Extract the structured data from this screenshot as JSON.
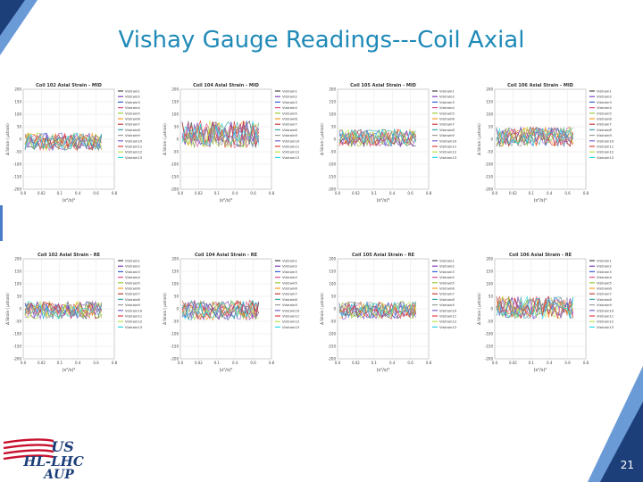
{
  "slide": {
    "title": "Vishay Gauge Readings---Coil Axial",
    "page_number": "21",
    "logo": {
      "line1": "US",
      "line2": "HL-LHC",
      "line3": "AUP"
    }
  },
  "colors": {
    "title": "#1f8ab8",
    "accent_dark": "#1c3f7a",
    "accent_light": "#6b9bd6",
    "logo_red": "#c8102e",
    "logo_blue": "#1c3f7a"
  },
  "legend_items": [
    "Vistrain1",
    "Vistrain2",
    "Vistrain3",
    "Vistrain4",
    "Vistrain5",
    "Vistrain6",
    "Vistrain7",
    "Vistrain8",
    "Vistrain9",
    "Vistrain10",
    "Vistrain11",
    "Vistrain12",
    "Vistrain13"
  ],
  "series_colors": [
    "#4a4a4a",
    "#7f3fbf",
    "#2f5fd6",
    "#d94f8a",
    "#9ccc3a",
    "#ff9a1f",
    "#c43a3a",
    "#3aa6a6",
    "#9a9a9a",
    "#7d5fd0",
    "#e04040",
    "#bde04a",
    "#29d6e8"
  ],
  "chart_data": [
    {
      "type": "line",
      "title": "Coil 102 Axial Strain - MID",
      "ylabel": "Δ Strain ( μstrain)",
      "xlabel": "(s²/s)²",
      "xticks": [
        "0.0",
        "0.02",
        "0.1",
        "0.4",
        "0.6",
        "0.8"
      ],
      "yticks": [
        "200",
        "150",
        "100",
        "50",
        "0",
        "-50",
        "-100",
        "-150",
        "-200"
      ],
      "ylim": [
        -200,
        200
      ],
      "center": -10,
      "amp": 35
    },
    {
      "type": "line",
      "title": "Coil 104 Axial Strain - MID",
      "ylabel": "Δ Strain ( μstrain)",
      "xlabel": "(s²/s)²",
      "xticks": [
        "0.0",
        "0.02",
        "0.1",
        "0.4",
        "0.6",
        "0.8"
      ],
      "yticks": [
        "200",
        "150",
        "100",
        "50",
        "0",
        "-50",
        "-100",
        "-150",
        "-200"
      ],
      "ylim": [
        -200,
        200
      ],
      "center": 20,
      "amp": 55
    },
    {
      "type": "line",
      "title": "Coil 105 Axial Strain - MID",
      "ylabel": "Δ Strain ( μstrain)",
      "xlabel": "(s²/s)²",
      "xticks": [
        "0.0",
        "0.02",
        "0.1",
        "0.4",
        "0.6",
        "0.8"
      ],
      "yticks": [
        "200",
        "150",
        "100",
        "50",
        "0",
        "-50",
        "-100",
        "-150",
        "-200"
      ],
      "ylim": [
        -200,
        200
      ],
      "center": 5,
      "amp": 35
    },
    {
      "type": "line",
      "title": "Coil 106 Axial Strain - MID",
      "ylabel": "Δ Strain ( μstrain)",
      "xlabel": "(s²/s)²",
      "xticks": [
        "0.0",
        "0.02",
        "0.1",
        "0.4",
        "0.6",
        "0.8"
      ],
      "yticks": [
        "200",
        "150",
        "100",
        "50",
        "0",
        "-50",
        "-100",
        "-150",
        "-200"
      ],
      "ylim": [
        -200,
        200
      ],
      "center": 10,
      "amp": 40
    },
    {
      "type": "line",
      "title": "Coil 102 Axial Strain - RE",
      "ylabel": "Δ Strain ( μstrain)",
      "xlabel": "(s²/s)²",
      "xticks": [
        "0.0",
        "0.02",
        "0.1",
        "0.4",
        "0.6",
        "0.8"
      ],
      "yticks": [
        "200",
        "150",
        "100",
        "50",
        "0",
        "-50",
        "-100",
        "-150",
        "-200"
      ],
      "ylim": [
        -200,
        200
      ],
      "center": -5,
      "amp": 35
    },
    {
      "type": "line",
      "title": "Coil 104 Axial Strain - RE",
      "ylabel": "Δ Strain ( μstrain)",
      "xlabel": "(s²/s)²",
      "xticks": [
        "0.0",
        "0.02",
        "0.1",
        "0.4",
        "0.6",
        "0.8"
      ],
      "yticks": [
        "200",
        "150",
        "100",
        "50",
        "0",
        "-50",
        "-100",
        "-150",
        "-200"
      ],
      "ylim": [
        -200,
        200
      ],
      "center": -5,
      "amp": 40
    },
    {
      "type": "line",
      "title": "Coil 105 Axial Strain - RE",
      "ylabel": "Δ Strain ( μstrain)",
      "xlabel": "(s²/s)²",
      "xticks": [
        "0.0",
        "0.02",
        "0.1",
        "0.4",
        "0.6",
        "0.8"
      ],
      "yticks": [
        "200",
        "150",
        "100",
        "50",
        "0",
        "-50",
        "-100",
        "-150",
        "-200"
      ],
      "ylim": [
        -200,
        200
      ],
      "center": -5,
      "amp": 35
    },
    {
      "type": "line",
      "title": "Coil 106 Axial Strain - RE",
      "ylabel": "Δ Strain ( μstrain)",
      "xlabel": "(s²/s)²",
      "xticks": [
        "0.0",
        "0.02",
        "0.1",
        "0.4",
        "0.6",
        "0.8"
      ],
      "yticks": [
        "200",
        "150",
        "100",
        "50",
        "0",
        "-50",
        "-100",
        "-150",
        "-200"
      ],
      "ylim": [
        -200,
        200
      ],
      "center": 5,
      "amp": 45
    }
  ]
}
